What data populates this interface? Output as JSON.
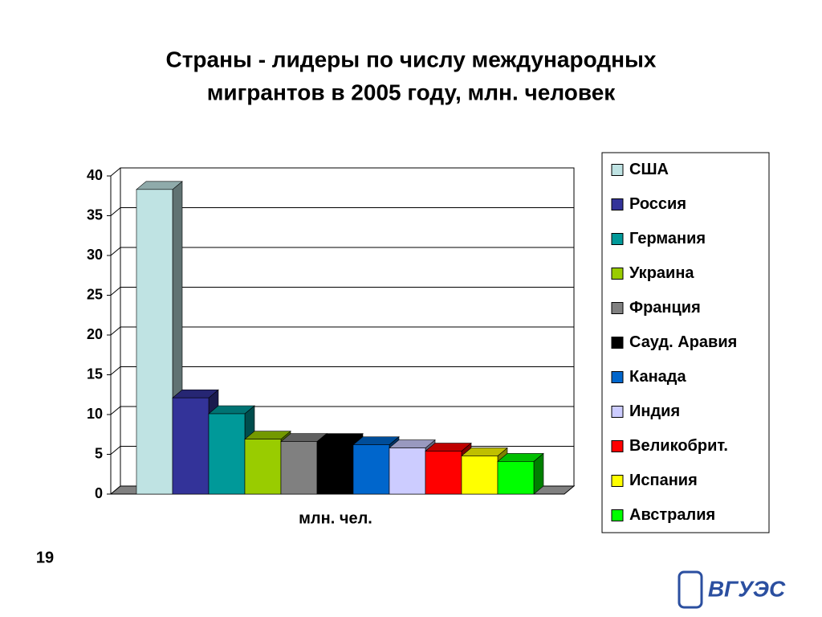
{
  "chart_data": {
    "type": "bar",
    "title": [
      "Страны - лидеры по числу международных",
      "мигрантов в 2005 году, млн. человек"
    ],
    "categories": [
      "млн. чел."
    ],
    "series": [
      {
        "name": "США",
        "color": "#bfe3e3",
        "values": [
          38.3
        ]
      },
      {
        "name": "Россия",
        "color": "#333399",
        "values": [
          12.1
        ]
      },
      {
        "name": "Германия",
        "color": "#009999",
        "values": [
          10.1
        ]
      },
      {
        "name": "Украина",
        "color": "#99cc00",
        "values": [
          6.9
        ]
      },
      {
        "name": "Франция",
        "color": "#808080",
        "values": [
          6.6
        ]
      },
      {
        "name": "Сауд. Аравия",
        "color": "#000000",
        "values": [
          6.6
        ]
      },
      {
        "name": "Канада",
        "color": "#0066cc",
        "values": [
          6.2
        ]
      },
      {
        "name": "Индия",
        "color": "#ccccff",
        "values": [
          5.8
        ]
      },
      {
        "name": "Великобрит.",
        "color": "#ff0000",
        "values": [
          5.4
        ]
      },
      {
        "name": "Испания",
        "color": "#ffff00",
        "values": [
          4.8
        ]
      },
      {
        "name": "Австралия",
        "color": "#00ff00",
        "values": [
          4.1
        ]
      }
    ],
    "ylim": [
      0,
      40
    ],
    "yticks": [
      0,
      5,
      10,
      15,
      20,
      25,
      30,
      35,
      40
    ],
    "grid": true,
    "legend": "right"
  },
  "page_number": "19",
  "logo": "ВГУЭС"
}
